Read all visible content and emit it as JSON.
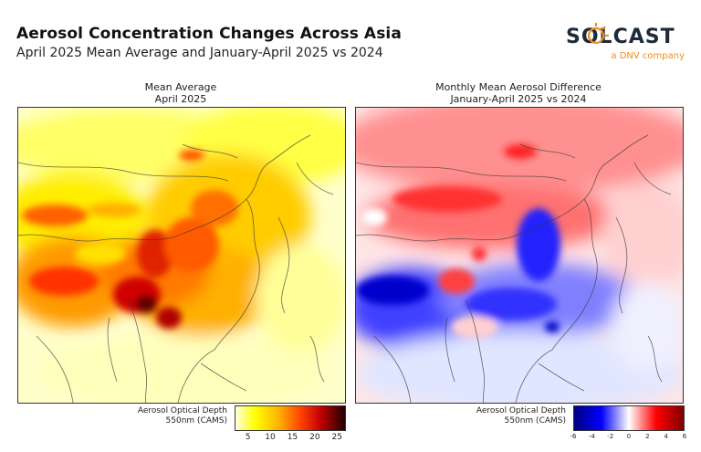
{
  "title": "Aerosol Concentration Changes Across Asia",
  "subtitle": "April 2025 Mean Average and January-April 2025 vs 2024",
  "logo": {
    "name": "SOLCAST",
    "tagline": "a DNV company",
    "accent_color": "#f08c1e"
  },
  "left_panel": {
    "title_line1": "Mean Average",
    "title_line2": "April 2025",
    "colorbar_label_line1": "Aerosol Optical Depth",
    "colorbar_label_line2": "550nm (CAMS)",
    "colorbar_ticks": [
      "5",
      "10",
      "15",
      "20",
      "25"
    ],
    "colorbar_range": [
      2,
      27
    ],
    "colormap": [
      "#ffffe0",
      "#ffff00",
      "#ffb000",
      "#ff4000",
      "#c00000",
      "#200000"
    ]
  },
  "right_panel": {
    "title_line1": "Monthly Mean Aerosol Difference",
    "title_line2": "January-April 2025 vs 2024",
    "colorbar_label_line1": "Aerosol Optical Depth",
    "colorbar_label_line2": "550nm (CAMS)",
    "colorbar_ticks": [
      "-6",
      "-4",
      "-2",
      "0",
      "2",
      "4",
      "6"
    ],
    "colorbar_range": [
      -6,
      6
    ],
    "colormap": [
      "#000080",
      "#0000ff",
      "#ffffff",
      "#ff0000",
      "#800000"
    ]
  }
}
